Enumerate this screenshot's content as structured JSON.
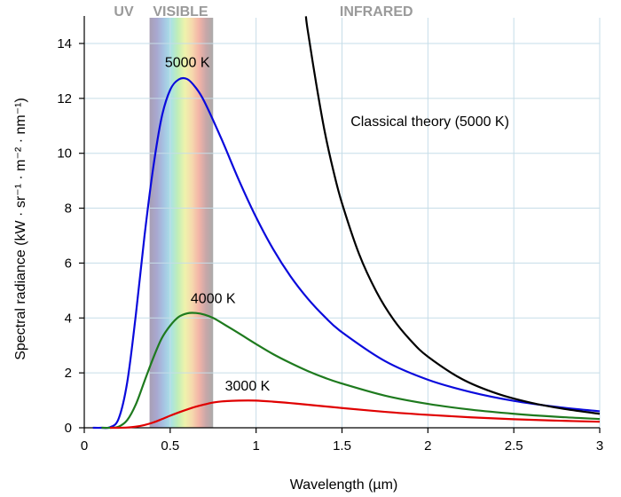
{
  "chart_data": {
    "type": "line",
    "xlabel": "Wavelength (µm)",
    "ylabel": "Spectral radiance (kW · sr⁻¹ · m⁻² · nm⁻¹)",
    "xlim": [
      0,
      3
    ],
    "ylim": [
      0,
      14.5
    ],
    "xticks": [
      "0",
      "0.5",
      "1",
      "1.5",
      "2",
      "2.5",
      "3"
    ],
    "yticks": [
      "0",
      "2",
      "4",
      "6",
      "8",
      "10",
      "12",
      "14"
    ],
    "grid": true,
    "colors": {
      "grid": "#c6dde8",
      "axis": "#000000",
      "region_label": "#9a9a9a",
      "visible_band_edges": "#aaaaaa"
    },
    "regions": [
      {
        "label": "UV",
        "x_center": 0.23
      },
      {
        "label": "VISIBLE",
        "x_center": 0.56
      },
      {
        "label": "INFRARED",
        "x_center": 1.7
      }
    ],
    "visible_band": {
      "xmin": 0.38,
      "xmax": 0.75,
      "colors": [
        "#a89fb4",
        "#a9a7cf",
        "#a6c3e3",
        "#a9e2e6",
        "#c1eeb8",
        "#eef3ac",
        "#f6d9ad",
        "#f3b4a7",
        "#c8a7a8",
        "#aaaaaa"
      ]
    },
    "series": [
      {
        "name": "5000 K",
        "color": "#0a0adc",
        "label": {
          "x": 0.6,
          "y": 13.15
        },
        "x": [
          0.05,
          0.1,
          0.15,
          0.2,
          0.25,
          0.3,
          0.35,
          0.4,
          0.45,
          0.5,
          0.55,
          0.6,
          0.65,
          0.7,
          0.8,
          0.9,
          1.0,
          1.1,
          1.2,
          1.3,
          1.4,
          1.5,
          1.75,
          2.0,
          2.25,
          2.5,
          2.75,
          3.0
        ],
        "y": [
          0.0,
          0.0,
          0.02,
          0.33,
          1.66,
          4.11,
          6.96,
          9.42,
          11.3,
          12.31,
          12.69,
          12.7,
          12.38,
          11.87,
          10.5,
          9.02,
          7.67,
          6.5,
          5.52,
          4.71,
          4.04,
          3.48,
          2.43,
          1.75,
          1.3,
          0.98,
          0.76,
          0.6
        ]
      },
      {
        "name": "4000 K",
        "color": "#1e7a1e",
        "label": {
          "x": 0.75,
          "y": 4.55
        },
        "x": [
          0.1,
          0.15,
          0.2,
          0.25,
          0.3,
          0.35,
          0.4,
          0.45,
          0.5,
          0.55,
          0.6,
          0.65,
          0.7,
          0.75,
          0.8,
          0.9,
          1.0,
          1.1,
          1.2,
          1.3,
          1.4,
          1.5,
          1.75,
          2.0,
          2.25,
          2.5,
          2.75,
          3.0
        ],
        "y": [
          0.0,
          0.0,
          0.04,
          0.28,
          0.85,
          1.69,
          2.52,
          3.25,
          3.72,
          4.04,
          4.17,
          4.18,
          4.12,
          4.0,
          3.82,
          3.44,
          3.05,
          2.68,
          2.36,
          2.07,
          1.82,
          1.61,
          1.17,
          0.87,
          0.66,
          0.51,
          0.4,
          0.32
        ]
      },
      {
        "name": "3000 K",
        "color": "#e00000",
        "label": {
          "x": 0.95,
          "y": 1.35
        },
        "x": [
          0.15,
          0.2,
          0.25,
          0.3,
          0.35,
          0.4,
          0.45,
          0.5,
          0.55,
          0.6,
          0.65,
          0.7,
          0.75,
          0.8,
          0.9,
          1.0,
          1.1,
          1.2,
          1.3,
          1.4,
          1.5,
          1.75,
          2.0,
          2.25,
          2.5,
          2.75,
          3.0
        ],
        "y": [
          0.0,
          0.0,
          0.01,
          0.04,
          0.1,
          0.19,
          0.31,
          0.44,
          0.56,
          0.67,
          0.77,
          0.85,
          0.92,
          0.96,
          0.99,
          0.99,
          0.95,
          0.9,
          0.84,
          0.78,
          0.72,
          0.58,
          0.47,
          0.38,
          0.31,
          0.26,
          0.22
        ]
      },
      {
        "name": "Classical theory (5000 K)",
        "color": "#000000",
        "label": {
          "x": 1.55,
          "y": 11.0
        },
        "x": [
          1.29,
          1.3,
          1.35,
          1.4,
          1.45,
          1.5,
          1.6,
          1.7,
          1.8,
          1.9,
          2.0,
          2.2,
          2.4,
          2.6,
          2.8,
          3.0
        ],
        "y": [
          14.99,
          14.5,
          12.53,
          10.77,
          9.36,
          8.18,
          6.32,
          4.96,
          3.94,
          3.18,
          2.59,
          1.77,
          1.25,
          0.91,
          0.68,
          0.51
        ]
      }
    ]
  }
}
